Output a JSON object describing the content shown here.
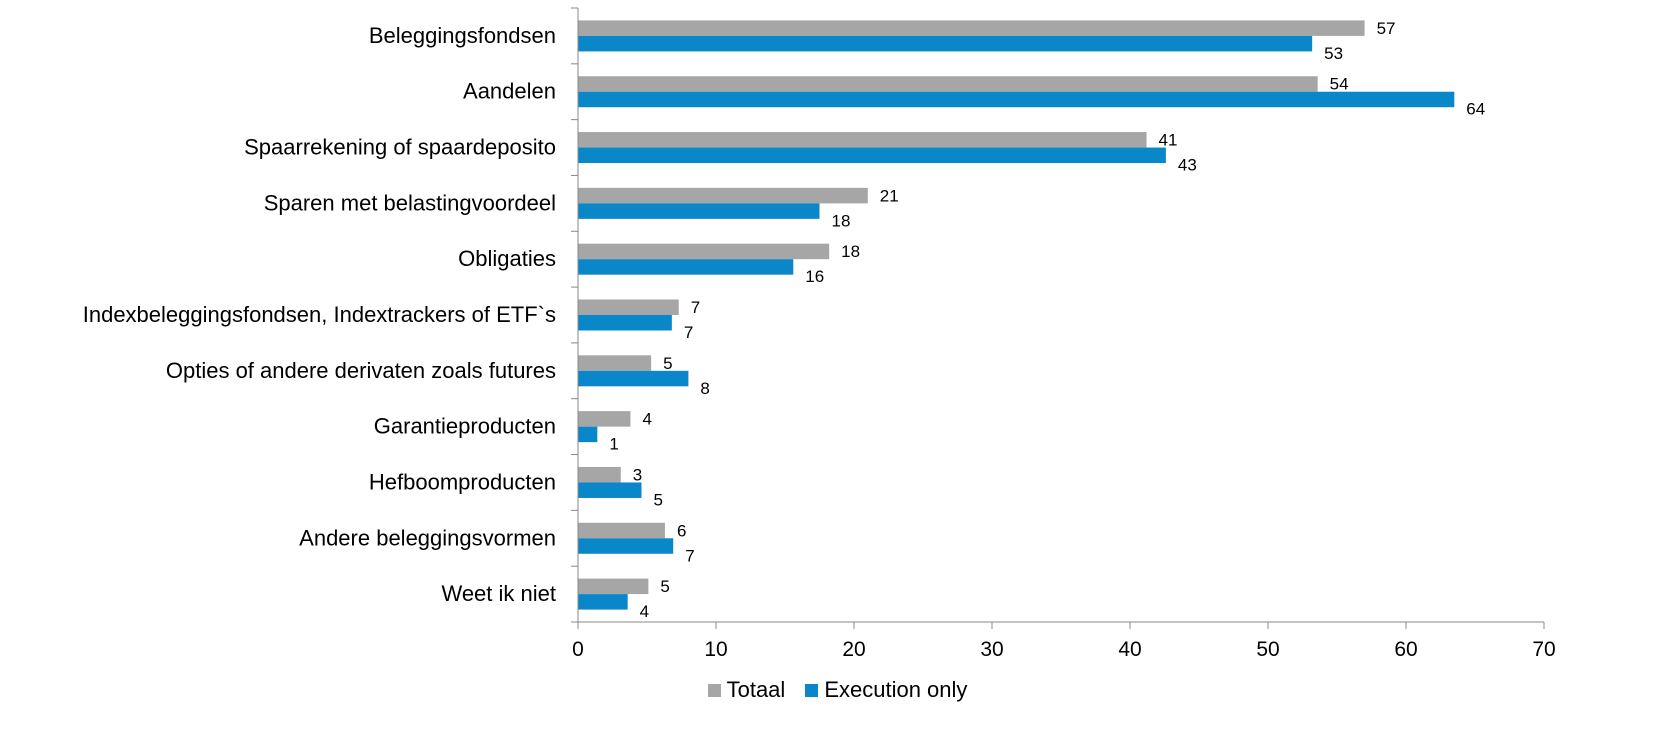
{
  "chart_data": {
    "type": "bar",
    "orientation": "horizontal",
    "categories": [
      "Beleggingsfondsen",
      "Aandelen",
      "Spaarrekening of spaardeposito",
      "Sparen met belastingvoordeel",
      "Obligaties",
      "Indexbeleggingsfondsen, Indextrackers of ETF`s",
      "Opties of andere derivaten zoals futures",
      "Garantieproducten",
      "Hefboomproducten",
      "Andere beleggingsvormen",
      "Weet ik niet"
    ],
    "series": [
      {
        "name": "Totaal",
        "color": "#a6a6a6",
        "values": [
          57,
          53.6,
          41.2,
          21,
          18.2,
          7.3,
          5.3,
          3.8,
          3.1,
          6.3,
          5.1
        ],
        "labels": [
          "57",
          "54",
          "41",
          "21",
          "18",
          "7",
          "5",
          "4",
          "3",
          "6",
          "5"
        ]
      },
      {
        "name": "Execution only",
        "color": "#0a87c8",
        "values": [
          53.2,
          63.5,
          42.6,
          17.5,
          15.6,
          6.8,
          8.0,
          1.4,
          4.6,
          6.9,
          3.6
        ],
        "labels": [
          "53",
          "64",
          "43",
          "18",
          "16",
          "7",
          "8",
          "1",
          "5",
          "7",
          "4"
        ]
      }
    ],
    "xlim": [
      0,
      70
    ],
    "xticks": [
      0,
      10,
      20,
      30,
      40,
      50,
      60,
      70
    ],
    "title": "",
    "xlabel": "",
    "ylabel": "",
    "grid": false,
    "legend_position": "bottom"
  }
}
